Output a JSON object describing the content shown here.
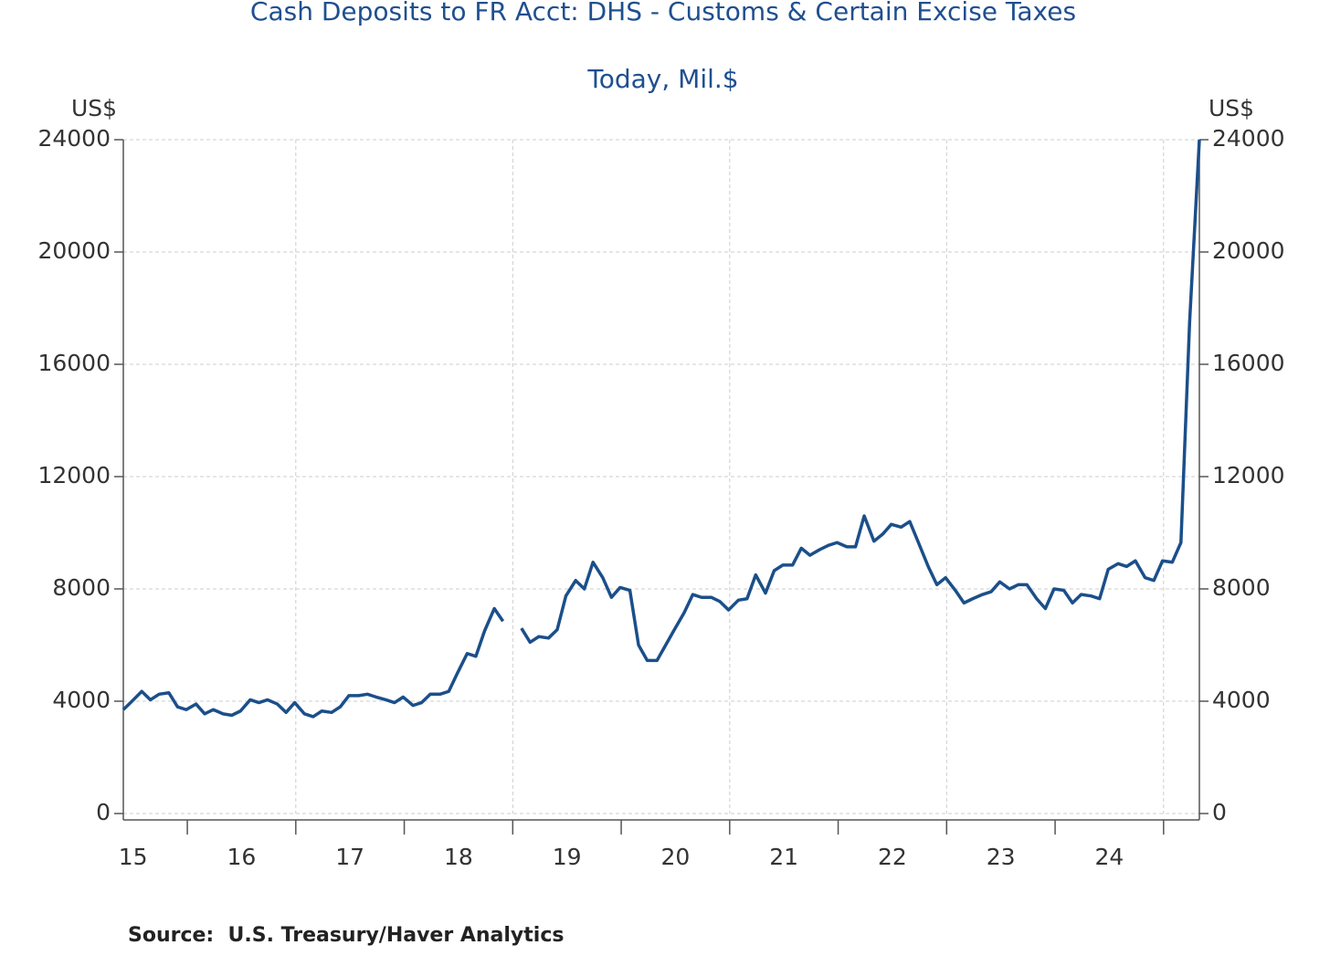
{
  "chart_data": {
    "type": "line",
    "title": "Cash Deposits to FR Acct: DHS - Customs & Certain Excise Taxes",
    "subtitle": "Today, Mil.$",
    "y_label": "US$",
    "y2_label": "US$",
    "source": "Source:  U.S. Treasury/Haver Analytics",
    "x": [
      15.41,
      15.49,
      15.58,
      15.66,
      15.74,
      15.83,
      15.91,
      15.99,
      16.08,
      16.16,
      16.24,
      16.33,
      16.41,
      16.49,
      16.58,
      16.66,
      16.74,
      16.83,
      16.91,
      16.99,
      17.08,
      17.16,
      17.24,
      17.33,
      17.41,
      17.49,
      17.58,
      17.66,
      17.74,
      17.83,
      17.91,
      17.99,
      18.08,
      18.16,
      18.24,
      18.33,
      18.41,
      18.49,
      18.58,
      18.66,
      18.74,
      18.83,
      18.91,
      18.99,
      19.08,
      19.16,
      19.24,
      19.33,
      19.41,
      19.49,
      19.58,
      19.66,
      19.74,
      19.83,
      19.91,
      19.99,
      20.08,
      20.16,
      20.24,
      20.33,
      20.41,
      20.49,
      20.58,
      20.66,
      20.74,
      20.83,
      20.91,
      20.99,
      21.08,
      21.16,
      21.24,
      21.33,
      21.41,
      21.49,
      21.58,
      21.66,
      21.74,
      21.83,
      21.91,
      21.99,
      22.08,
      22.16,
      22.24,
      22.33,
      22.41,
      22.49,
      22.58,
      22.66,
      22.74,
      22.83,
      22.91,
      22.99,
      23.08,
      23.16,
      23.24,
      23.33,
      23.41,
      23.49,
      23.58,
      23.66,
      23.74,
      23.83,
      23.91,
      23.99,
      24.08,
      24.16,
      24.24,
      24.33,
      24.41,
      24.49,
      24.58,
      24.66,
      24.74,
      24.83,
      24.91,
      24.99,
      25.08,
      25.16,
      25.24,
      25.33
    ],
    "series": [
      {
        "name": "Cash Deposits",
        "color": "#1b4f8a",
        "values": [
          3700,
          4000,
          4350,
          4050,
          4250,
          4300,
          3800,
          3700,
          3900,
          3550,
          3700,
          3550,
          3500,
          3650,
          4050,
          3950,
          4050,
          3900,
          3600,
          3950,
          3550,
          3450,
          3650,
          3600,
          3800,
          4200,
          4200,
          4250,
          4150,
          4050,
          3950,
          4150,
          3850,
          3950,
          4250,
          4250,
          4350,
          5000,
          5700,
          5600,
          6500,
          7300,
          6850,
          null,
          6600,
          6100,
          6300,
          6250,
          6550,
          7750,
          8300,
          8000,
          8950,
          8400,
          7700,
          8050,
          7950,
          6000,
          5450,
          5450,
          6000,
          6550,
          7150,
          7800,
          7700,
          7700,
          7550,
          7250,
          7600,
          7650,
          8500,
          7850,
          8650,
          8850,
          8850,
          9450,
          9200,
          9400,
          9550,
          9650,
          9500,
          9500,
          10600,
          9700,
          9950,
          10300,
          10200,
          10400,
          9650,
          8800,
          8150,
          8400,
          7950,
          7500,
          7650,
          7800,
          7900,
          8250,
          8000,
          8150,
          8150,
          7650,
          7300,
          8000,
          7950,
          7500,
          7800,
          7750,
          7650,
          8700,
          8900,
          8800,
          9000,
          8400,
          8300,
          9000,
          8950,
          9650,
          17500,
          24000
        ]
      }
    ],
    "xlim": [
      15.41,
      25.33
    ],
    "xticks": [
      {
        "value": 15.5,
        "label": "15"
      },
      {
        "value": 16.5,
        "label": "16"
      },
      {
        "value": 17.5,
        "label": "17"
      },
      {
        "value": 18.5,
        "label": "18"
      },
      {
        "value": 19.5,
        "label": "19"
      },
      {
        "value": 20.5,
        "label": "20"
      },
      {
        "value": 21.5,
        "label": "21"
      },
      {
        "value": 22.5,
        "label": "22"
      },
      {
        "value": 23.5,
        "label": "23"
      },
      {
        "value": 24.5,
        "label": "24"
      }
    ],
    "x_minor_ticks": [
      16,
      17,
      18,
      19,
      20,
      21,
      22,
      23,
      24,
      25
    ],
    "x_grid": [
      17,
      19,
      21,
      23,
      25
    ],
    "ylim": [
      0,
      24000
    ],
    "yticks": [
      0,
      4000,
      8000,
      12000,
      16000,
      20000,
      24000
    ],
    "y2lim": [
      0,
      24000
    ],
    "y2ticks": [
      0,
      4000,
      8000,
      12000,
      16000,
      20000,
      24000
    ],
    "grid": true
  }
}
